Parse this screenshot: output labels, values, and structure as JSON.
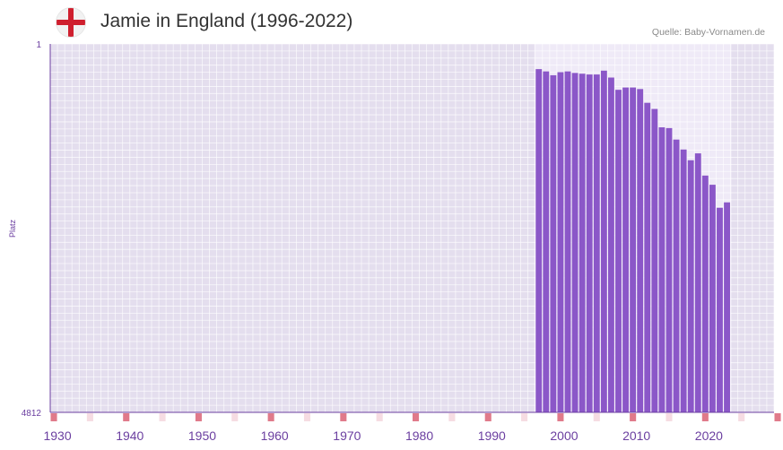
{
  "title": "Jamie in England (1996-2022)",
  "source": "Quelle: Baby-Vornamen.de",
  "flag_icon": "england-flag-icon",
  "colors": {
    "bar": "#8b57c8",
    "plot_bg": "#e4deee",
    "active_bg": "#efeaf7",
    "axis": "#6b3fa0",
    "marker_major": "#e07a8a",
    "marker_minor": "#f6dce2"
  },
  "chart_data": {
    "type": "bar",
    "title": "Jamie in England (1996-2022)",
    "xlabel": "",
    "ylabel": "Platz",
    "y_inverted": true,
    "ylim": [
      4812,
      1
    ],
    "y_ticks": [
      "1",
      "4812"
    ],
    "xlim": [
      1929,
      2029
    ],
    "x_ticks": [
      1930,
      1940,
      1950,
      1960,
      1970,
      1980,
      1990,
      2000,
      2010,
      2020
    ],
    "years": [
      1996,
      1997,
      1998,
      1999,
      2000,
      2001,
      2002,
      2003,
      2004,
      2005,
      2006,
      2007,
      2008,
      2009,
      2010,
      2011,
      2012,
      2013,
      2014,
      2015,
      2016,
      2017,
      2018,
      2019,
      2020,
      2021,
      2022
    ],
    "ranks": [
      330,
      360,
      410,
      370,
      360,
      380,
      390,
      400,
      400,
      350,
      440,
      600,
      570,
      570,
      590,
      770,
      850,
      1090,
      1100,
      1250,
      1380,
      1520,
      1430,
      1720,
      1840,
      2140,
      2070
    ]
  }
}
